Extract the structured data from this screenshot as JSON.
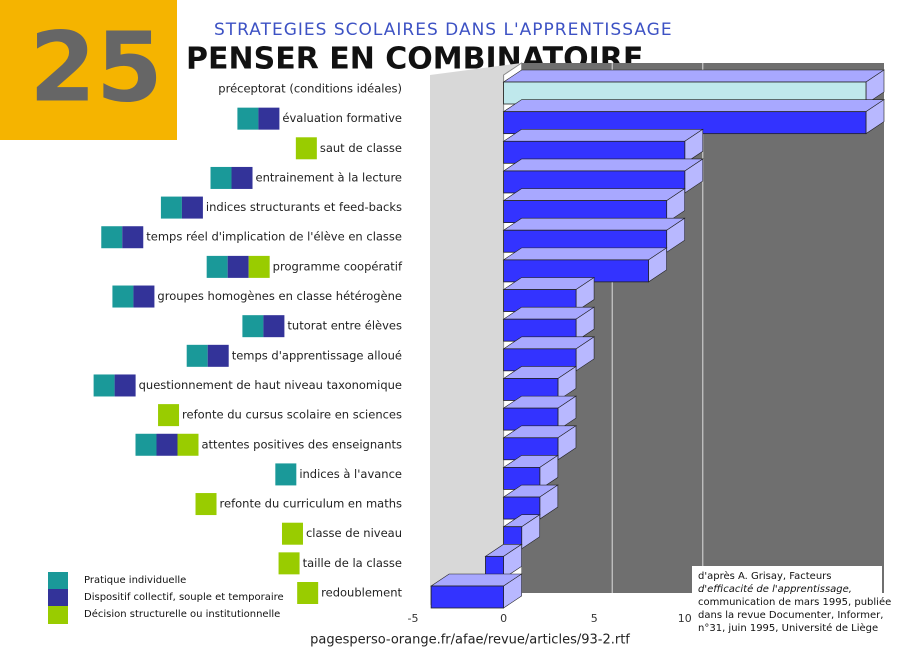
{
  "chart_data": {
    "type": "bar3d",
    "badge": "25",
    "subtitle": "STRATEGIES SCOLAIRES DANS L'APPRENTISSAGE",
    "title": "PENSER EN COMBINATOIRE",
    "categories": [
      "préceptorat (conditions idéales)",
      "évaluation formative",
      "saut de classe",
      "entrainement à la lecture",
      "indices structurants et feed-backs",
      "temps réel d'implication de l'élève en classe",
      "programme coopératif",
      "groupes homogènes en classe hétérogène",
      "tutorat entre élèves",
      "temps d'apprentissage alloué",
      "questionnement de haut niveau taxonomique",
      "refonte du cursus scolaire en sciences",
      "attentes positives des enseignants",
      "indices à l'avance",
      "refonte du curriculum en maths",
      "classe de niveau",
      "taille de la classe",
      "redoublement"
    ],
    "values": [
      20,
      20,
      10,
      10,
      9,
      9,
      8,
      4,
      4,
      4,
      3,
      3,
      3,
      2,
      2,
      1,
      -1,
      -4
    ],
    "color": "#3333ff",
    "highlight_color": "#bfe8ec",
    "marker_colors": [
      [],
      [
        "#1a9999",
        "#333399"
      ],
      [
        "#99cc00"
      ],
      [
        "#1a9999",
        "#333399"
      ],
      [
        "#1a9999",
        "#333399"
      ],
      [
        "#1a9999",
        "#333399"
      ],
      [
        "#1a9999",
        "#333399",
        "#99cc00"
      ],
      [
        "#1a9999",
        "#333399"
      ],
      [
        "#1a9999",
        "#333399"
      ],
      [
        "#1a9999",
        "#333399"
      ],
      [
        "#1a9999",
        "#333399"
      ],
      [
        "#99cc00"
      ],
      [
        "#1a9999",
        "#333399",
        "#99cc00"
      ],
      [
        "#1a9999"
      ],
      [
        "#99cc00"
      ],
      [
        "#99cc00"
      ],
      [
        "#99cc00"
      ],
      [
        "#99cc00"
      ]
    ],
    "xlim": [
      -5,
      20
    ],
    "xticks": [
      -5,
      0,
      5,
      10
    ],
    "grid": true,
    "legend": [
      {
        "label": "Pratique individuelle",
        "color": "#1a9999"
      },
      {
        "label": "Dispositif collectif, souple et temporaire",
        "color": "#333399"
      },
      {
        "label": "Décision structurelle ou institutionnelle",
        "color": "#99cc00"
      }
    ],
    "source": "pagesperso-orange.fr/afae/revue/articles/93-2.rtf",
    "citation": [
      "d'après A. Grisay, Facteurs",
      "d'efficacité de l'apprentissage,",
      "communication de mars 1995, publiée",
      "dans la revue Documenter, Informer,",
      "n°31, juin 1995, Université de Liège"
    ]
  }
}
